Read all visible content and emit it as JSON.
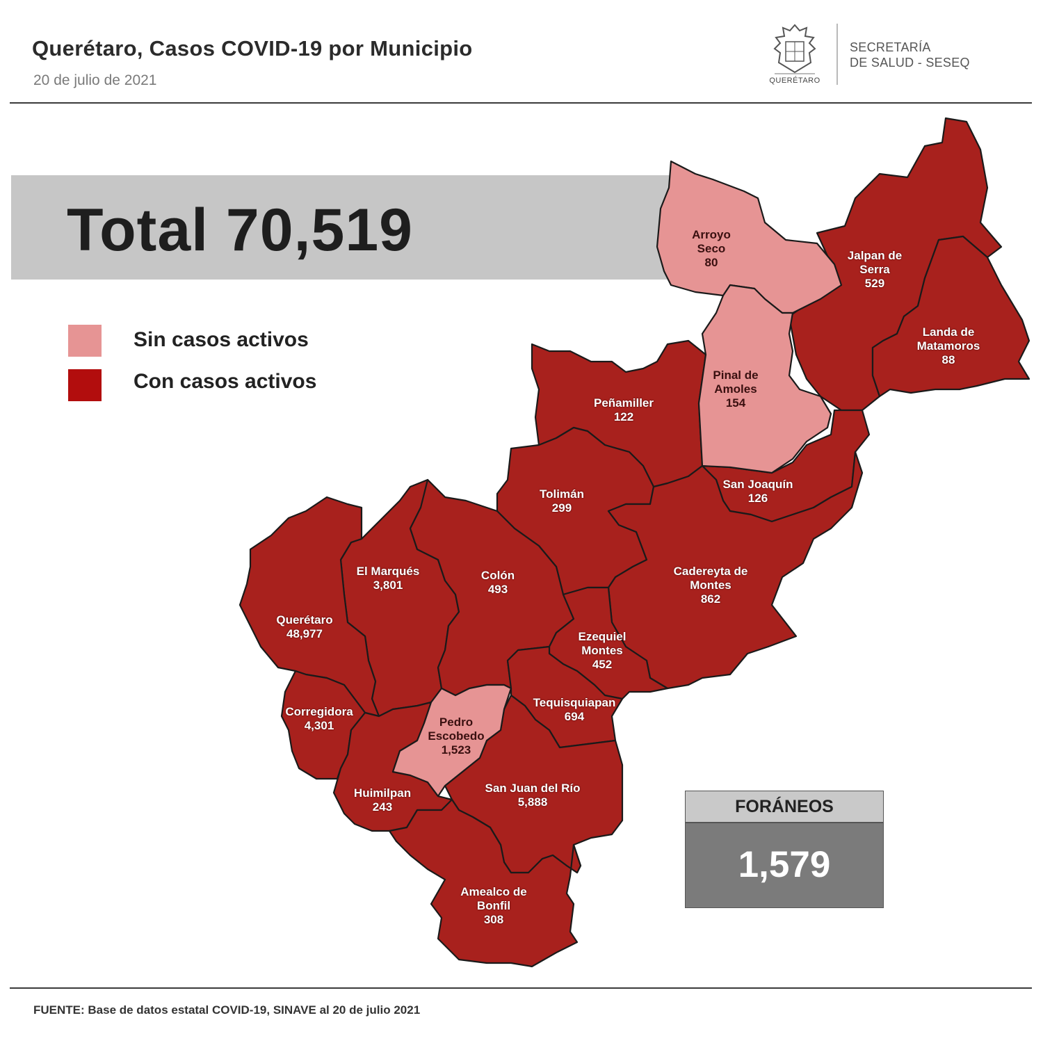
{
  "header": {
    "title": "Querétaro, Casos COVID-19 por Municipio",
    "date": "20 de julio de 2021",
    "logo_text": "QUERÉTARO",
    "dept_line1": "SECRETARÍA",
    "dept_line2": "DE SALUD - SESEQ"
  },
  "total": {
    "text": "Total 70,519"
  },
  "legend": {
    "items": [
      {
        "label": "Sin casos activos",
        "color": "#e69494"
      },
      {
        "label": "Con casos activos",
        "color": "#b20d0d"
      }
    ]
  },
  "colors": {
    "active": "#a8211d",
    "inactive": "#e69494",
    "border": "#1a1a1a"
  },
  "municipios": [
    {
      "name": "Arroyo Seco",
      "line1": "Arroyo",
      "line2": "Seco",
      "cases": "80",
      "status": "inactive"
    },
    {
      "name": "Jalpan de Serra",
      "line1": "Jalpan de",
      "line2": "Serra",
      "cases": "529",
      "status": "active"
    },
    {
      "name": "Landa de Matamoros",
      "line1": "Landa de",
      "line2": "Matamoros",
      "cases": "88",
      "status": "active"
    },
    {
      "name": "Pinal de Amoles",
      "line1": "Pinal de",
      "line2": "Amoles",
      "cases": "154",
      "status": "inactive"
    },
    {
      "name": "Peñamiller",
      "line1": "Peñamiller",
      "line2": "",
      "cases": "122",
      "status": "active"
    },
    {
      "name": "San Joaquín",
      "line1": "San Joaquín",
      "line2": "",
      "cases": "126",
      "status": "active"
    },
    {
      "name": "Tolimán",
      "line1": "Tolimán",
      "line2": "",
      "cases": "299",
      "status": "active"
    },
    {
      "name": "Cadereyta de Montes",
      "line1": "Cadereyta de",
      "line2": "Montes",
      "cases": "862",
      "status": "active"
    },
    {
      "name": "El Marqués",
      "line1": "El  Marqués",
      "line2": "",
      "cases": "3,801",
      "status": "active"
    },
    {
      "name": "Colón",
      "line1": "Colón",
      "line2": "",
      "cases": "493",
      "status": "active"
    },
    {
      "name": "Querétaro",
      "line1": "Querétaro",
      "line2": "",
      "cases": "48,977",
      "status": "active"
    },
    {
      "name": "Ezequiel Montes",
      "line1": "Ezequiel",
      "line2": "Montes",
      "cases": "452",
      "status": "active"
    },
    {
      "name": "Tequisquiapan",
      "line1": "Tequisquiapan",
      "line2": "",
      "cases": "694",
      "status": "active"
    },
    {
      "name": "Corregidora",
      "line1": "Corregidora",
      "line2": "",
      "cases": "4,301",
      "status": "active"
    },
    {
      "name": "Pedro Escobedo",
      "line1": "Pedro",
      "line2": "Escobedo",
      "cases": "1,523",
      "status": "inactive"
    },
    {
      "name": "Huimilpan",
      "line1": "Huimilpan",
      "line2": "",
      "cases": "243",
      "status": "active"
    },
    {
      "name": "San Juan del Río",
      "line1": "San Juan del Río",
      "line2": "",
      "cases": "5,888",
      "status": "active"
    },
    {
      "name": "Amealco de Bonfil",
      "line1": "Amealco de",
      "line2": "Bonfil",
      "cases": "308",
      "status": "active"
    }
  ],
  "foraneos": {
    "label": "FORÁNEOS",
    "value": "1,579"
  },
  "source": "FUENTE:  Base de datos estatal COVID-19,  SINAVE  al 20 de julio 2021"
}
